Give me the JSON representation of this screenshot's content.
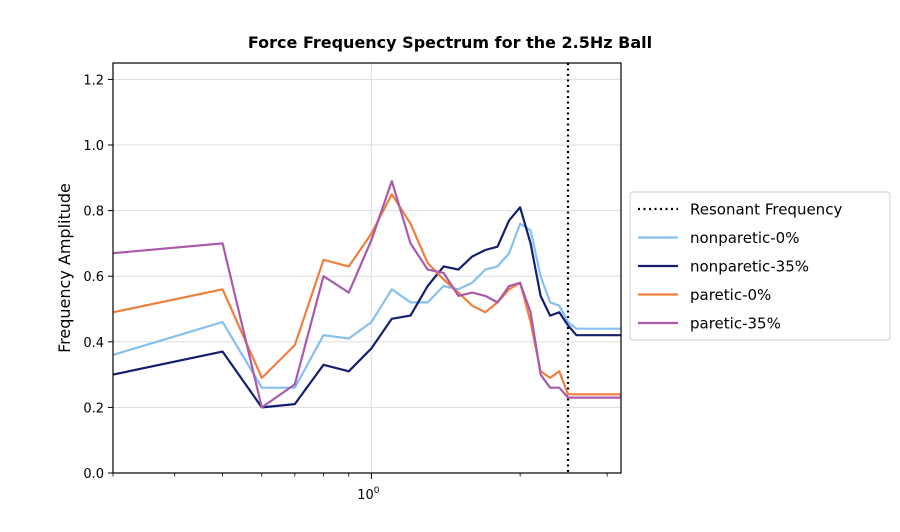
{
  "chart_data": {
    "type": "line",
    "title": "Force Frequency Spectrum for the 2.5Hz Ball",
    "xlabel": "",
    "ylabel": "Frequency Amplitude",
    "x_scale": "log",
    "xlim": [
      0.3,
      3.2
    ],
    "ylim": [
      0.0,
      1.25
    ],
    "yticks": [
      "0.0",
      "0.2",
      "0.4",
      "0.6",
      "0.8",
      "1.0",
      "1.2"
    ],
    "xtick_labels": [
      {
        "value": 1.0,
        "label_base": "10",
        "label_exp": "0"
      }
    ],
    "grid": true,
    "legend_position": "right",
    "reference_line": {
      "name": "Resonant Frequency",
      "x": 2.5,
      "color": "#000000",
      "style": "dotted"
    },
    "series": [
      {
        "name": "nonparetic-0%",
        "color": "#85c1f0",
        "x": [
          0.3,
          0.5,
          0.6,
          0.7,
          0.8,
          0.9,
          1.0,
          1.1,
          1.2,
          1.3,
          1.4,
          1.5,
          1.6,
          1.7,
          1.8,
          1.9,
          2.0,
          2.1,
          2.2,
          2.3,
          2.4,
          2.5,
          2.6,
          2.7,
          2.8,
          2.9,
          3.0,
          3.1,
          3.2
        ],
        "y": [
          0.36,
          0.46,
          0.26,
          0.26,
          0.42,
          0.41,
          0.46,
          0.56,
          0.52,
          0.52,
          0.57,
          0.56,
          0.58,
          0.62,
          0.63,
          0.67,
          0.76,
          0.74,
          0.6,
          0.52,
          0.51,
          0.46,
          0.44,
          0.44,
          0.44,
          0.44,
          0.44,
          0.44,
          0.44
        ]
      },
      {
        "name": "nonparetic-35%",
        "color": "#131e6e",
        "x": [
          0.3,
          0.5,
          0.6,
          0.7,
          0.8,
          0.9,
          1.0,
          1.1,
          1.2,
          1.3,
          1.4,
          1.5,
          1.6,
          1.7,
          1.8,
          1.9,
          2.0,
          2.1,
          2.2,
          2.3,
          2.4,
          2.5,
          2.6,
          2.7,
          2.8,
          2.9,
          3.0,
          3.1,
          3.2
        ],
        "y": [
          0.3,
          0.37,
          0.2,
          0.21,
          0.33,
          0.31,
          0.38,
          0.47,
          0.48,
          0.57,
          0.63,
          0.62,
          0.66,
          0.68,
          0.69,
          0.77,
          0.81,
          0.7,
          0.54,
          0.48,
          0.49,
          0.45,
          0.42,
          0.42,
          0.42,
          0.42,
          0.42,
          0.42,
          0.42
        ]
      },
      {
        "name": "paretic-0%",
        "color": "#f07f3c",
        "x": [
          0.3,
          0.5,
          0.6,
          0.7,
          0.8,
          0.9,
          1.0,
          1.1,
          1.2,
          1.3,
          1.4,
          1.5,
          1.6,
          1.7,
          1.8,
          1.9,
          2.0,
          2.1,
          2.2,
          2.3,
          2.4,
          2.5,
          2.6,
          2.7,
          2.8,
          2.9,
          3.0,
          3.1,
          3.2
        ],
        "y": [
          0.49,
          0.56,
          0.29,
          0.39,
          0.65,
          0.63,
          0.73,
          0.85,
          0.76,
          0.64,
          0.59,
          0.55,
          0.51,
          0.49,
          0.52,
          0.56,
          0.58,
          0.46,
          0.31,
          0.29,
          0.31,
          0.24,
          0.24,
          0.24,
          0.24,
          0.24,
          0.24,
          0.24,
          0.24
        ]
      },
      {
        "name": "paretic-35%",
        "color": "#a95aaa",
        "x": [
          0.3,
          0.5,
          0.6,
          0.7,
          0.8,
          0.9,
          1.0,
          1.1,
          1.2,
          1.3,
          1.4,
          1.5,
          1.6,
          1.7,
          1.8,
          1.9,
          2.0,
          2.1,
          2.2,
          2.3,
          2.4,
          2.5,
          2.6,
          2.7,
          2.8,
          2.9,
          3.0,
          3.1,
          3.2
        ],
        "y": [
          0.67,
          0.7,
          0.2,
          0.27,
          0.6,
          0.55,
          0.71,
          0.89,
          0.7,
          0.62,
          0.61,
          0.54,
          0.55,
          0.54,
          0.52,
          0.57,
          0.58,
          0.49,
          0.3,
          0.26,
          0.26,
          0.23,
          0.23,
          0.23,
          0.23,
          0.23,
          0.23,
          0.23,
          0.23
        ]
      }
    ]
  }
}
